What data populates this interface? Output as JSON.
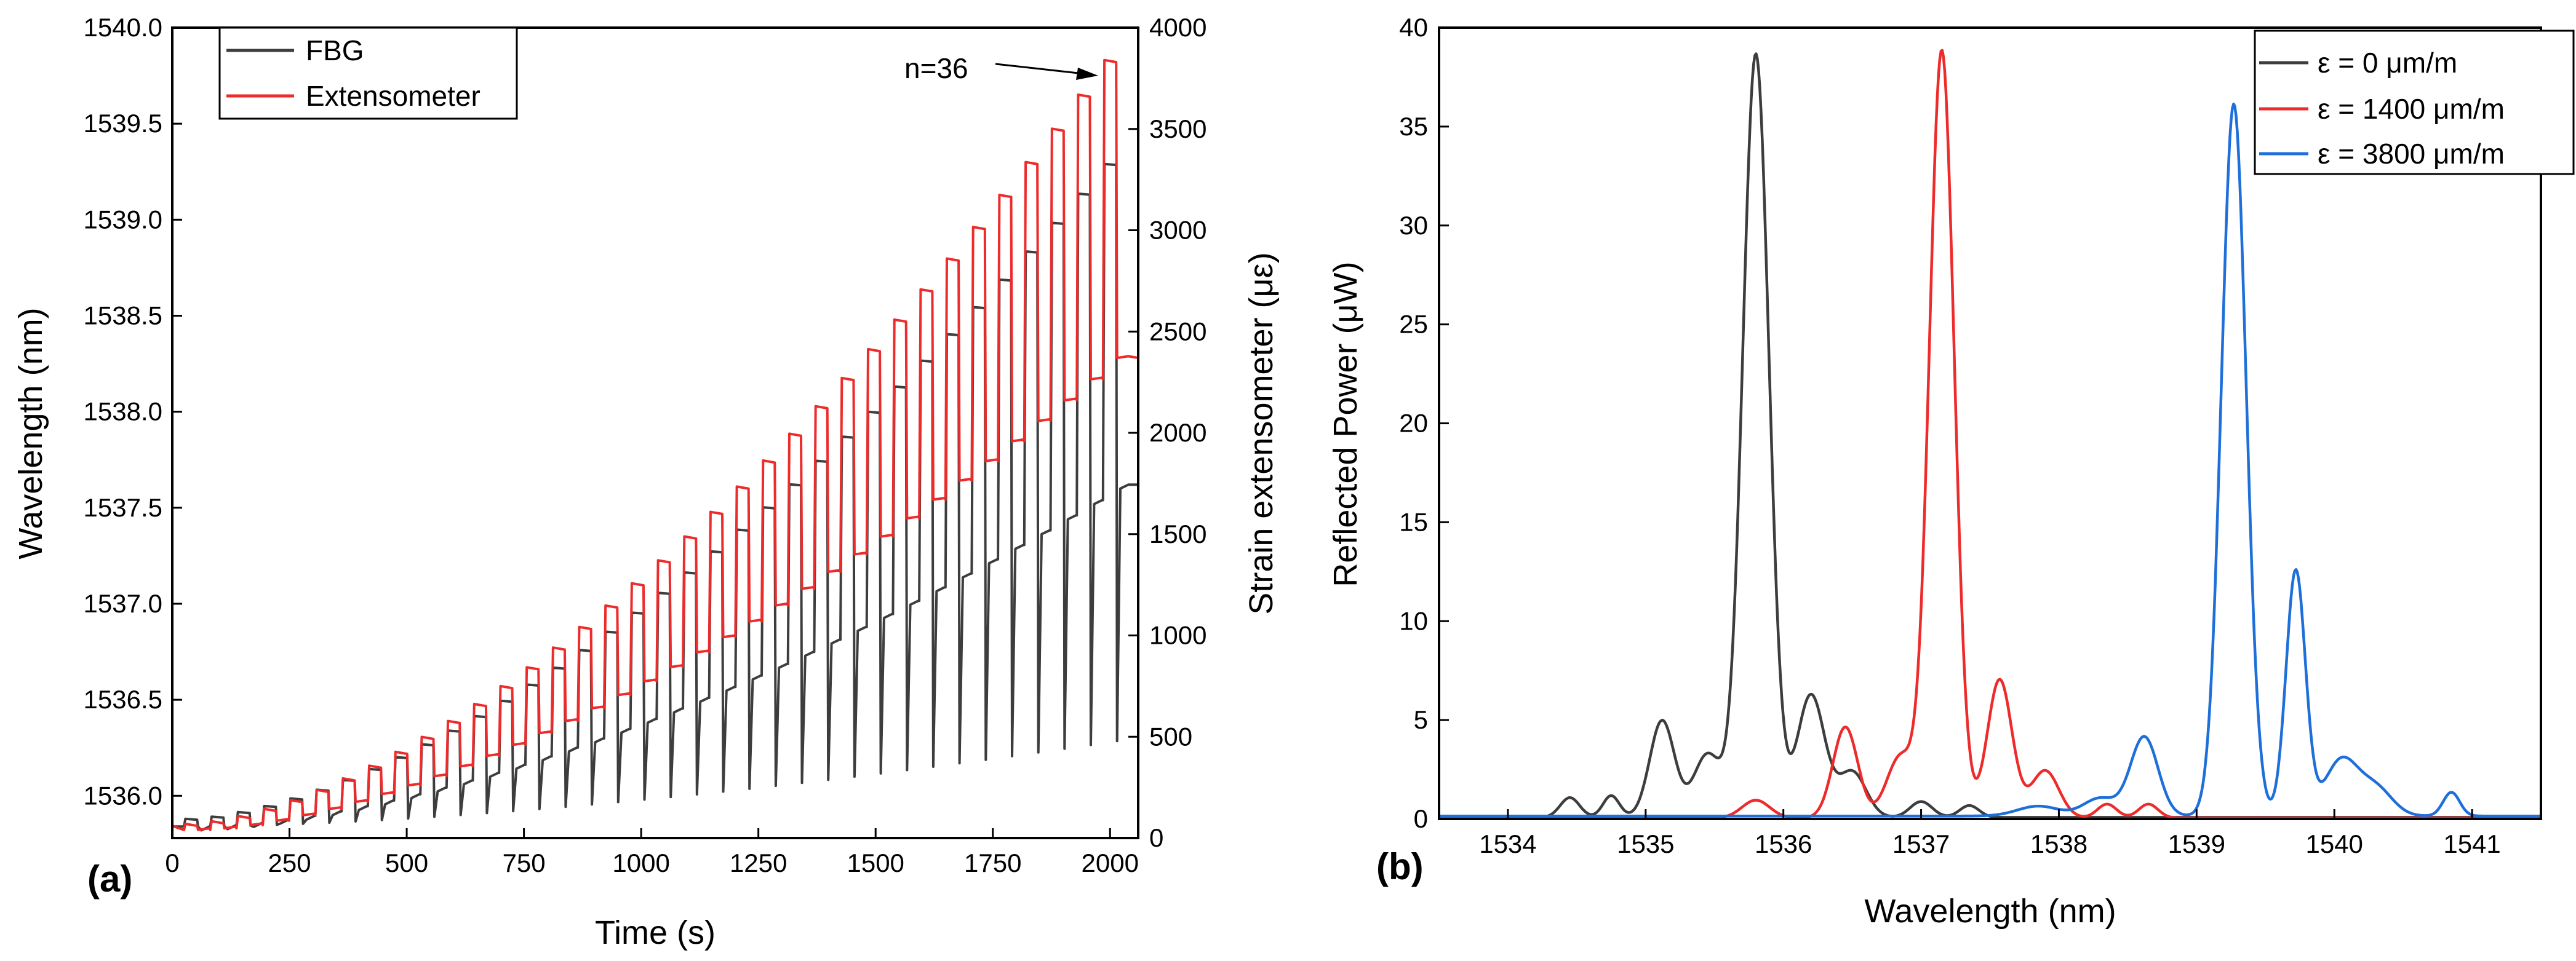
{
  "chart_data": [
    {
      "panel": "(a)",
      "type": "line",
      "xlabel": "Time (s)",
      "ylabel": "Wavelength (nm)",
      "y2label": "Strain extensometer (με)",
      "xlim": [
        0,
        2060
      ],
      "ylim": [
        1535.78,
        1540.0
      ],
      "y2lim": [
        0,
        4000
      ],
      "xticks": [
        0,
        250,
        500,
        750,
        1000,
        1250,
        1500,
        1750,
        2000
      ],
      "yticks": [
        1536.0,
        1536.5,
        1537.0,
        1537.5,
        1538.0,
        1538.5,
        1539.0,
        1539.5,
        1540.0
      ],
      "ytick_labels": [
        "1536.0",
        "1536.5",
        "1537.0",
        "1537.5",
        "1538.0",
        "1538.5",
        "1539.0",
        "1539.5",
        "1540.0"
      ],
      "y2ticks": [
        0,
        500,
        1000,
        1500,
        2000,
        2500,
        3000,
        3500,
        4000
      ],
      "legend": [
        "FBG",
        "Extensometer"
      ],
      "legend_position": "top-left",
      "annotation": "n=36",
      "cycles": {
        "count": 36,
        "start_time": 25,
        "period": 56,
        "hold_duration": 28,
        "base_wavelength": 1535.84,
        "fbg_peak_first": 1535.88,
        "fbg_peak_last": 1539.29,
        "fbg_trough_first": 1535.84,
        "fbg_trough_last": 1537.62,
        "ext_peak_first": 70,
        "ext_peak_last": 3840,
        "ext_trough_first": 40,
        "ext_trough_last": 2370
      },
      "series": [
        {
          "name": "FBG",
          "axis": "left",
          "color": "#3d3d3d"
        },
        {
          "name": "Extensometer",
          "axis": "right",
          "color": "#ee2b2b"
        }
      ]
    },
    {
      "panel": "(b)",
      "type": "line",
      "xlabel": "Wavelength (nm)",
      "ylabel": "Reflected Power (μW)",
      "xlim": [
        1533.5,
        1541.5
      ],
      "ylim": [
        0,
        40
      ],
      "xticks": [
        1534,
        1535,
        1536,
        1537,
        1538,
        1539,
        1540,
        1541
      ],
      "yticks": [
        0,
        5,
        10,
        15,
        20,
        25,
        30,
        35,
        40
      ],
      "legend_position": "top-right",
      "series": [
        {
          "name": "ε = 0 μm/m",
          "color": "#3d3d3d",
          "baseline": 0.08,
          "peaks": [
            [
              1534.45,
              1.0,
              0.07
            ],
            [
              1534.75,
              1.1,
              0.06
            ],
            [
              1535.12,
              4.9,
              0.09
            ],
            [
              1535.45,
              3.2,
              0.1
            ],
            [
              1535.8,
              38.6,
              0.095
            ],
            [
              1536.2,
              6.2,
              0.1
            ],
            [
              1536.5,
              2.3,
              0.1
            ],
            [
              1537.0,
              0.8,
              0.08
            ],
            [
              1537.35,
              0.6,
              0.07
            ]
          ]
        },
        {
          "name": "ε = 1400 μm/m",
          "color": "#ee2b2b",
          "baseline": 0.05,
          "peaks": [
            [
              1535.8,
              0.9,
              0.1
            ],
            [
              1536.45,
              4.6,
              0.09
            ],
            [
              1536.85,
              3.1,
              0.1
            ],
            [
              1537.15,
              38.8,
              0.09
            ],
            [
              1537.57,
              7.0,
              0.09
            ],
            [
              1537.9,
              2.4,
              0.1
            ],
            [
              1538.35,
              0.7,
              0.07
            ],
            [
              1538.65,
              0.7,
              0.07
            ]
          ]
        },
        {
          "name": "ε = 3800 μm/m",
          "color": "#1e6fd9",
          "baseline": 0.15,
          "peaks": [
            [
              1537.85,
              0.5,
              0.15
            ],
            [
              1538.3,
              0.9,
              0.12
            ],
            [
              1538.62,
              4.0,
              0.1
            ],
            [
              1539.27,
              36.0,
              0.09
            ],
            [
              1539.72,
              12.4,
              0.07
            ],
            [
              1540.05,
              2.8,
              0.12
            ],
            [
              1540.3,
              1.4,
              0.12
            ],
            [
              1540.85,
              1.2,
              0.06
            ]
          ]
        }
      ]
    }
  ]
}
